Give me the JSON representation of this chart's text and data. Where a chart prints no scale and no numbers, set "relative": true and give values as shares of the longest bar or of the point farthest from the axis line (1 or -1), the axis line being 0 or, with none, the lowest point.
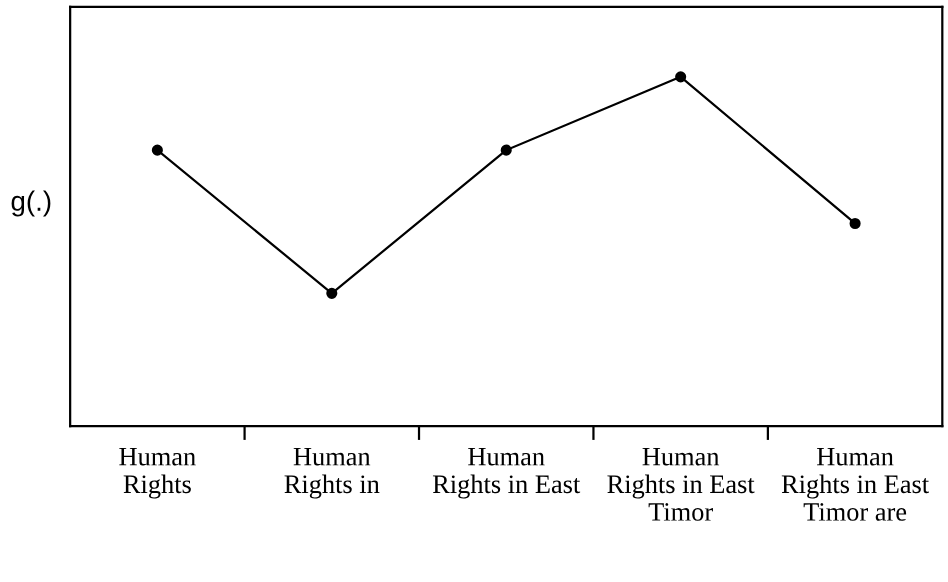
{
  "chart_data": {
    "type": "line",
    "ylabel": "g(.)",
    "relative": true,
    "categories": [
      "Human\nRights",
      "Human\nRights in",
      "Human\nRights in East",
      "Human\nRights in East\nTimor",
      "Human\nRights in East\nTimor are"
    ],
    "series": [
      {
        "color": "#000000",
        "values": [
          0.79,
          0.38,
          0.79,
          1,
          0.58
        ]
      }
    ],
    "marker": "circle",
    "line_style": "solid",
    "grid": false,
    "legend": false
  }
}
